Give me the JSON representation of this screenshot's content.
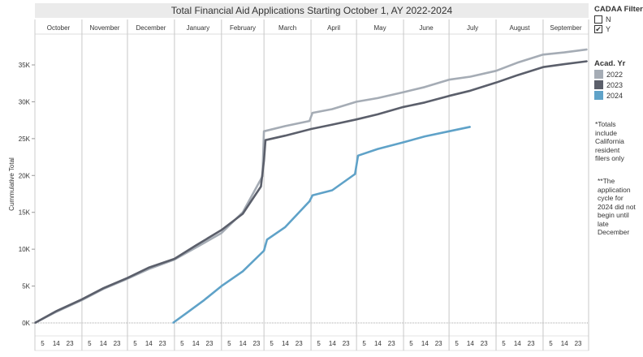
{
  "chart_data": {
    "type": "line",
    "title": "Total Financial Aid Applications Starting October 1, AY 2022-2024",
    "ylabel": "Cummulative Total",
    "ylim": [
      0,
      38000
    ],
    "yticks": [
      0,
      5000,
      10000,
      15000,
      20000,
      25000,
      30000,
      35000
    ],
    "ytick_labels": [
      "0K",
      "5K",
      "10K",
      "15K",
      "20K",
      "25K",
      "30K",
      "35K"
    ],
    "months": [
      "October",
      "November",
      "December",
      "January",
      "February",
      "March",
      "April",
      "May",
      "June",
      "July",
      "August",
      "September"
    ],
    "day_ticks": [
      "5",
      "14",
      "23"
    ],
    "grid": false,
    "legend_placement": "right",
    "series": [
      {
        "name": "2022",
        "color": "#a5acb5",
        "points": [
          [
            "10-01",
            0
          ],
          [
            "10-15",
            1500
          ],
          [
            "11-01",
            3100
          ],
          [
            "11-15",
            4600
          ],
          [
            "12-01",
            6000
          ],
          [
            "12-15",
            7300
          ],
          [
            "01-01",
            8600
          ],
          [
            "01-15",
            10200
          ],
          [
            "02-01",
            12200
          ],
          [
            "02-15",
            15000
          ],
          [
            "02-28",
            19900
          ],
          [
            "03-01",
            26000
          ],
          [
            "03-15",
            26700
          ],
          [
            "03-31",
            27400
          ],
          [
            "04-02",
            28500
          ],
          [
            "04-15",
            29000
          ],
          [
            "05-01",
            30000
          ],
          [
            "05-15",
            30500
          ],
          [
            "06-01",
            31300
          ],
          [
            "06-15",
            32000
          ],
          [
            "07-01",
            33000
          ],
          [
            "07-15",
            33400
          ],
          [
            "08-01",
            34200
          ],
          [
            "08-15",
            35300
          ],
          [
            "09-01",
            36400
          ],
          [
            "09-15",
            36700
          ],
          [
            "09-30",
            37100
          ]
        ]
      },
      {
        "name": "2023",
        "color": "#5b5f6b",
        "points": [
          [
            "10-01",
            0
          ],
          [
            "10-15",
            1600
          ],
          [
            "11-01",
            3200
          ],
          [
            "11-15",
            4700
          ],
          [
            "12-01",
            6100
          ],
          [
            "12-15",
            7500
          ],
          [
            "01-01",
            8700
          ],
          [
            "01-15",
            10500
          ],
          [
            "02-01",
            12600
          ],
          [
            "02-15",
            14800
          ],
          [
            "02-27",
            18500
          ],
          [
            "03-01",
            22000
          ],
          [
            "03-02",
            24800
          ],
          [
            "03-15",
            25400
          ],
          [
            "04-01",
            26300
          ],
          [
            "04-15",
            26900
          ],
          [
            "05-01",
            27600
          ],
          [
            "05-15",
            28300
          ],
          [
            "06-01",
            29300
          ],
          [
            "06-15",
            29900
          ],
          [
            "07-01",
            30800
          ],
          [
            "07-15",
            31500
          ],
          [
            "08-01",
            32600
          ],
          [
            "08-15",
            33600
          ],
          [
            "09-01",
            34700
          ],
          [
            "09-15",
            35100
          ],
          [
            "09-30",
            35500
          ]
        ]
      },
      {
        "name": "2024",
        "color": "#5fa2c8",
        "points": [
          [
            "12-31",
            0
          ],
          [
            "01-10",
            1500
          ],
          [
            "01-20",
            3000
          ],
          [
            "02-01",
            5000
          ],
          [
            "02-15",
            7000
          ],
          [
            "03-01",
            9800
          ],
          [
            "03-03",
            11300
          ],
          [
            "03-15",
            13000
          ],
          [
            "03-31",
            16500
          ],
          [
            "04-02",
            17300
          ],
          [
            "04-15",
            18000
          ],
          [
            "04-30",
            20200
          ],
          [
            "05-02",
            22700
          ],
          [
            "05-15",
            23600
          ],
          [
            "06-01",
            24500
          ],
          [
            "06-15",
            25300
          ],
          [
            "07-01",
            26000
          ],
          [
            "07-15",
            26600
          ]
        ]
      }
    ]
  },
  "legend": {
    "filter_title": "CADAA Filter",
    "filter_options": [
      {
        "label": "N",
        "checked": false
      },
      {
        "label": "Y",
        "checked": true
      }
    ],
    "year_title": "Acad. Yr",
    "years": [
      "2022",
      "2023",
      "2024"
    ]
  },
  "notes": {
    "note1": "*Totals include California resident filers only",
    "note2": "**The application cycle for 2024 did not begin until late December"
  }
}
